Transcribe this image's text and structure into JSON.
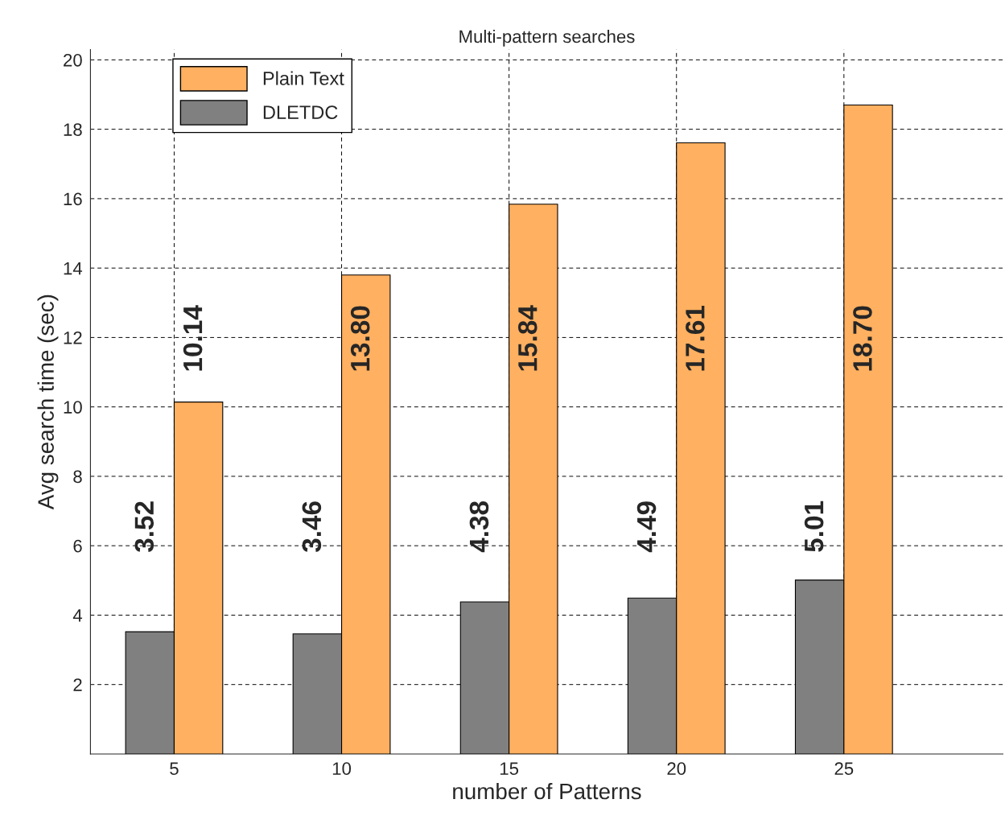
{
  "chart_data": {
    "type": "bar",
    "title": "Multi-pattern searches",
    "xlabel": "number of Patterns",
    "ylabel": "Avg search time (sec)",
    "categories": [
      "5",
      "10",
      "15",
      "20",
      "25"
    ],
    "series": [
      {
        "name": "DLETDC",
        "color": "#808080",
        "values": [
          3.52,
          3.46,
          4.38,
          4.49,
          5.01
        ],
        "value_labels": [
          "3.52",
          "3.46",
          "4.38",
          "4.49",
          "5.01"
        ]
      },
      {
        "name": "Plain Text",
        "color": "#ffb060",
        "values": [
          10.14,
          13.8,
          15.84,
          17.61,
          18.7
        ],
        "value_labels": [
          "10.14",
          "13.80",
          "15.84",
          "17.61",
          "18.70"
        ]
      }
    ],
    "ylim": [
      0,
      20.3
    ],
    "yticks": [
      2,
      4,
      6,
      8,
      10,
      12,
      14,
      16,
      18,
      20
    ],
    "grid": true,
    "legend": "top left"
  }
}
